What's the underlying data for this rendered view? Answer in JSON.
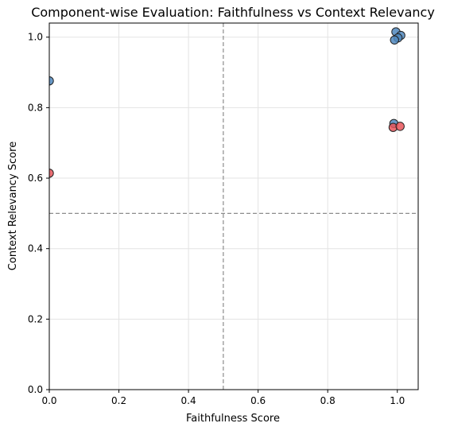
{
  "chart_data": {
    "type": "scatter",
    "title": "Component-wise Evaluation: Faithfulness vs Context Relevancy",
    "xlabel": "Faithfulness Score",
    "ylabel": "Context Relevancy Score",
    "xlim": [
      0.0,
      1.06
    ],
    "ylim": [
      0.0,
      1.04
    ],
    "xticks": [
      0.0,
      0.2,
      0.4,
      0.6,
      0.8,
      1.0
    ],
    "xtick_labels": [
      "0.0",
      "0.2",
      "0.4",
      "0.6",
      "0.8",
      "1.0"
    ],
    "yticks": [
      0.0,
      0.2,
      0.4,
      0.6,
      0.8,
      1.0
    ],
    "ytick_labels": [
      "0.0",
      "0.2",
      "0.4",
      "0.6",
      "0.8",
      "1.0"
    ],
    "grid": true,
    "reference_lines": {
      "x": 0.5,
      "y": 0.5
    },
    "series": [
      {
        "color": "#4f87bd",
        "points": [
          {
            "x": 0.0,
            "y": 0.876
          },
          {
            "x": 0.996,
            "y": 1.015
          },
          {
            "x": 1.01,
            "y": 1.005
          },
          {
            "x": 1.002,
            "y": 0.998
          },
          {
            "x": 0.992,
            "y": 0.992
          },
          {
            "x": 0.99,
            "y": 0.755
          }
        ]
      },
      {
        "color": "#e8555a",
        "points": [
          {
            "x": 0.0,
            "y": 0.614
          },
          {
            "x": 0.988,
            "y": 0.744
          },
          {
            "x": 1.008,
            "y": 0.747
          }
        ]
      }
    ]
  }
}
